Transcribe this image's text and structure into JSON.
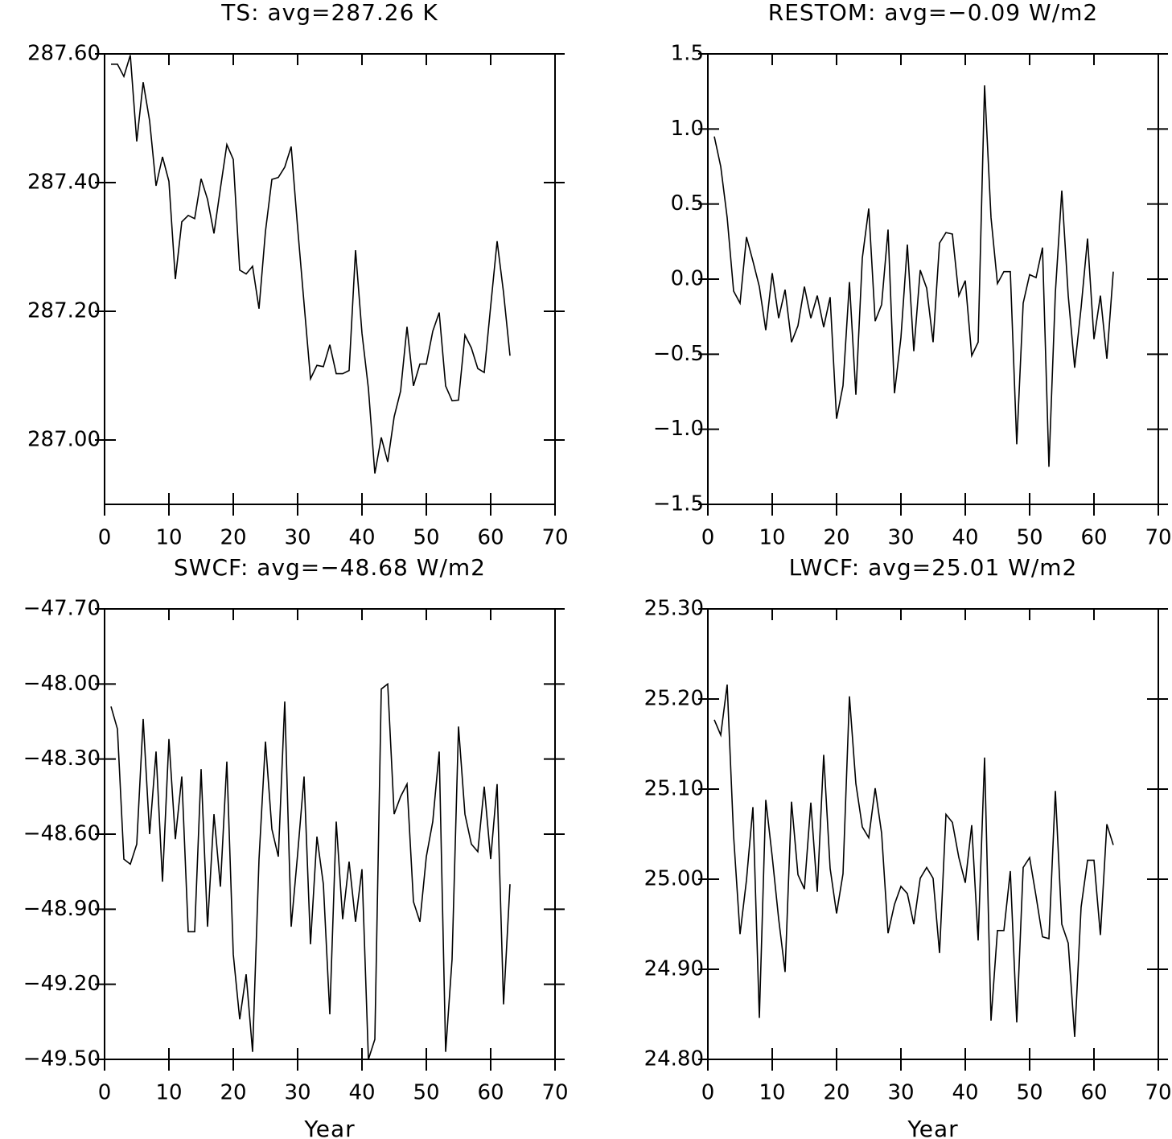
{
  "chart_data": [
    {
      "type": "line",
      "title": "TS: avg=287.26 K",
      "color": "#000000",
      "x": [
        1,
        2,
        3,
        4,
        5,
        6,
        7,
        8,
        9,
        10,
        11,
        12,
        13,
        14,
        15,
        16,
        17,
        18,
        19,
        20,
        21,
        22,
        23,
        24,
        25,
        26,
        27,
        28,
        29,
        30,
        31,
        32,
        33,
        34,
        35,
        36,
        37,
        38,
        39,
        40,
        41,
        42,
        43,
        44,
        45,
        46,
        47,
        48,
        49,
        50,
        51,
        52,
        53,
        54,
        55,
        56,
        57,
        58,
        59,
        60,
        61,
        62,
        63
      ],
      "values": [
        287.584,
        287.584,
        287.565,
        287.598,
        287.464,
        287.556,
        287.496,
        287.395,
        287.44,
        287.402,
        287.25,
        287.339,
        287.349,
        287.344,
        287.406,
        287.374,
        287.321,
        287.391,
        287.459,
        287.436,
        287.264,
        287.258,
        287.27,
        287.204,
        287.324,
        287.405,
        287.408,
        287.424,
        287.456,
        287.33,
        287.212,
        287.095,
        287.116,
        287.114,
        287.148,
        287.103,
        287.103,
        287.108,
        287.295,
        287.166,
        287.08,
        286.948,
        287.004,
        286.966,
        287.036,
        287.076,
        287.176,
        287.084,
        287.118,
        287.118,
        287.169,
        287.198,
        287.084,
        287.061,
        287.062,
        287.163,
        287.143,
        287.111,
        287.105,
        287.208,
        287.309,
        287.229,
        287.131
      ],
      "xlim": [
        0,
        70
      ],
      "xticks": [
        0,
        10,
        20,
        30,
        40,
        50,
        60,
        70
      ],
      "ylim": [
        286.9,
        287.6
      ],
      "yticks": [
        {
          "value": 287.0,
          "label": "287.00"
        },
        {
          "value": 287.2,
          "label": "287.20"
        },
        {
          "value": 287.4,
          "label": "287.40"
        },
        {
          "value": 287.6,
          "label": "287.60"
        }
      ]
    },
    {
      "type": "line",
      "title": "RESTOM: avg=−0.09 W/m2",
      "color": "#000000",
      "x": [
        1,
        2,
        3,
        4,
        5,
        6,
        7,
        8,
        9,
        10,
        11,
        12,
        13,
        14,
        15,
        16,
        17,
        18,
        19,
        20,
        21,
        22,
        23,
        24,
        25,
        26,
        27,
        28,
        29,
        30,
        31,
        32,
        33,
        34,
        35,
        36,
        37,
        38,
        39,
        40,
        41,
        42,
        43,
        44,
        45,
        46,
        47,
        48,
        49,
        50,
        51,
        52,
        53,
        54,
        55,
        56,
        57,
        58,
        59,
        60,
        61,
        62,
        63
      ],
      "values": [
        0.95,
        0.75,
        0.41,
        -0.08,
        -0.16,
        0.28,
        0.12,
        -0.05,
        -0.34,
        0.04,
        -0.26,
        -0.07,
        -0.42,
        -0.31,
        -0.05,
        -0.26,
        -0.11,
        -0.32,
        -0.12,
        -0.93,
        -0.71,
        -0.02,
        -0.77,
        0.14,
        0.47,
        -0.28,
        -0.17,
        0.33,
        -0.76,
        -0.39,
        0.23,
        -0.48,
        0.06,
        -0.06,
        -0.42,
        0.24,
        0.31,
        0.3,
        -0.11,
        -0.01,
        -0.51,
        -0.42,
        1.29,
        0.41,
        -0.03,
        0.05,
        0.05,
        -1.1,
        -0.16,
        0.03,
        0.01,
        0.21,
        -1.25,
        -0.09,
        0.59,
        -0.11,
        -0.59,
        -0.19,
        0.27,
        -0.4,
        -0.11,
        -0.53,
        0.05
      ],
      "xlim": [
        0,
        70
      ],
      "xticks": [
        0,
        10,
        20,
        30,
        40,
        50,
        60,
        70
      ],
      "ylim": [
        -1.5,
        1.5
      ],
      "yticks": [
        {
          "value": -1.5,
          "label": "−1.5"
        },
        {
          "value": -1.0,
          "label": "−1.0"
        },
        {
          "value": -0.5,
          "label": "−0.5"
        },
        {
          "value": 0,
          "label": "0.0"
        },
        0.5,
        {
          "value": 1.0,
          "label": "1.0"
        },
        1.5
      ]
    },
    {
      "type": "line",
      "title": "SWCF: avg=−48.68 W/m2",
      "color": "#000000",
      "xlabel": "Year",
      "x": [
        1,
        2,
        3,
        4,
        5,
        6,
        7,
        8,
        9,
        10,
        11,
        12,
        13,
        14,
        15,
        16,
        17,
        18,
        19,
        20,
        21,
        22,
        23,
        24,
        25,
        26,
        27,
        28,
        29,
        30,
        31,
        32,
        33,
        34,
        35,
        36,
        37,
        38,
        39,
        40,
        41,
        42,
        43,
        44,
        45,
        46,
        47,
        48,
        49,
        50,
        51,
        52,
        53,
        54,
        55,
        56,
        57,
        58,
        59,
        60,
        61,
        62,
        63
      ],
      "values": [
        -48.09,
        -48.18,
        -48.7,
        -48.72,
        -48.64,
        -48.14,
        -48.6,
        -48.27,
        -48.79,
        -48.22,
        -48.62,
        -48.37,
        -48.99,
        -48.99,
        -48.34,
        -48.97,
        -48.52,
        -48.81,
        -48.31,
        -49.08,
        -49.34,
        -49.16,
        -49.47,
        -48.7,
        -48.23,
        -48.58,
        -48.69,
        -48.07,
        -48.97,
        -48.68,
        -48.37,
        -49.04,
        -48.61,
        -48.8,
        -49.32,
        -48.55,
        -48.94,
        -48.71,
        -48.95,
        -48.74,
        -49.5,
        -49.42,
        -48.02,
        -48.0,
        -48.52,
        -48.45,
        -48.4,
        -48.87,
        -48.95,
        -48.69,
        -48.55,
        -48.27,
        -49.47,
        -49.1,
        -48.17,
        -48.52,
        -48.64,
        -48.67,
        -48.41,
        -48.7,
        -48.4,
        -49.28,
        -48.8
      ],
      "xlim": [
        0,
        70
      ],
      "xticks": [
        0,
        10,
        20,
        30,
        40,
        50,
        60,
        70
      ],
      "ylim": [
        -49.5,
        -47.7
      ],
      "yticks": [
        {
          "value": -49.5,
          "label": "−49.50"
        },
        {
          "value": -49.2,
          "label": "−49.20"
        },
        {
          "value": -48.9,
          "label": "−48.90"
        },
        {
          "value": -48.6,
          "label": "−48.60"
        },
        {
          "value": -48.3,
          "label": "−48.30"
        },
        {
          "value": -48.0,
          "label": "−48.00"
        },
        {
          "value": -47.7,
          "label": "−47.70"
        }
      ]
    },
    {
      "type": "line",
      "title": "LWCF: avg=25.01 W/m2",
      "color": "#000000",
      "xlabel": "Year",
      "x": [
        1,
        2,
        3,
        4,
        5,
        6,
        7,
        8,
        9,
        10,
        11,
        12,
        13,
        14,
        15,
        16,
        17,
        18,
        19,
        20,
        21,
        22,
        23,
        24,
        25,
        26,
        27,
        28,
        29,
        30,
        31,
        32,
        33,
        34,
        35,
        36,
        37,
        38,
        39,
        40,
        41,
        42,
        43,
        44,
        45,
        46,
        47,
        48,
        49,
        50,
        51,
        52,
        53,
        54,
        55,
        56,
        57,
        58,
        59,
        60,
        61,
        62,
        63
      ],
      "values": [
        25.177,
        25.16,
        25.216,
        25.048,
        24.939,
        24.999,
        25.08,
        24.846,
        25.088,
        25.025,
        24.956,
        24.897,
        25.086,
        25.005,
        24.989,
        25.085,
        24.986,
        25.138,
        25.012,
        24.962,
        25.006,
        25.203,
        25.106,
        25.058,
        25.046,
        25.101,
        25.051,
        24.94,
        24.972,
        24.992,
        24.984,
        24.95,
        25.001,
        25.013,
        25.001,
        24.918,
        25.072,
        25.063,
        25.024,
        24.996,
        25.06,
        24.932,
        25.135,
        24.843,
        24.943,
        24.943,
        25.009,
        24.841,
        25.013,
        25.024,
        24.981,
        24.936,
        24.934,
        25.098,
        24.95,
        24.929,
        24.825,
        24.969,
        25.021,
        25.021,
        24.938,
        25.061,
        25.038
      ],
      "xlim": [
        0,
        70
      ],
      "xticks": [
        0,
        10,
        20,
        30,
        40,
        50,
        60,
        70
      ],
      "ylim": [
        24.8,
        25.3
      ],
      "yticks": [
        {
          "value": 24.8,
          "label": "24.80"
        },
        {
          "value": 24.9,
          "label": "24.90"
        },
        {
          "value": 25.0,
          "label": "25.00"
        },
        {
          "value": 25.1,
          "label": "25.10"
        },
        {
          "value": 25.2,
          "label": "25.20"
        },
        {
          "value": 25.3,
          "label": "25.30"
        }
      ]
    }
  ]
}
